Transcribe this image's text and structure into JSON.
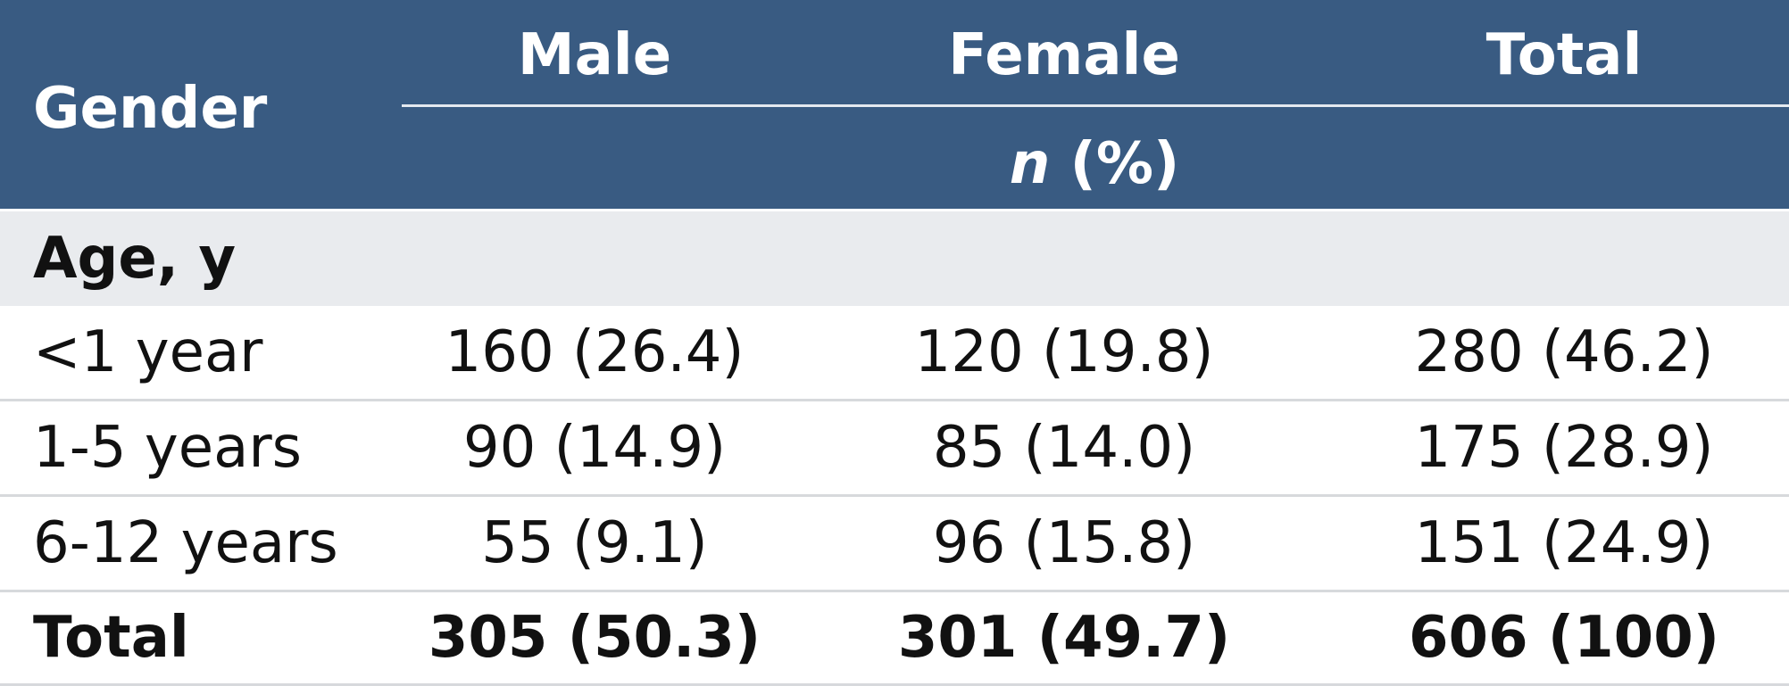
{
  "header": {
    "gender_label": "Gender",
    "columns": [
      "Male",
      "Female",
      "Total"
    ],
    "unit_italic": "n",
    "unit_rest": " (%)"
  },
  "section": {
    "label": "Age, y"
  },
  "rows": [
    {
      "label": "<1 year",
      "male": "160 (26.4)",
      "female": "120 (19.8)",
      "total": "280 (46.2)"
    },
    {
      "label": "1-5 years",
      "male": "90 (14.9)",
      "female": "85 (14.0)",
      "total": "175 (28.9)"
    },
    {
      "label": "6-12 years",
      "male": "55 (9.1)",
      "female": "96 (15.8)",
      "total": "151 (24.9)"
    }
  ],
  "total_row": {
    "label": "Total",
    "male": "305 (50.3)",
    "female": "301 (49.7)",
    "total": "606 (100)"
  },
  "colors": {
    "header_bg": "#395B82",
    "section_bg": "#e9ebee",
    "header_text": "#ffffff"
  }
}
